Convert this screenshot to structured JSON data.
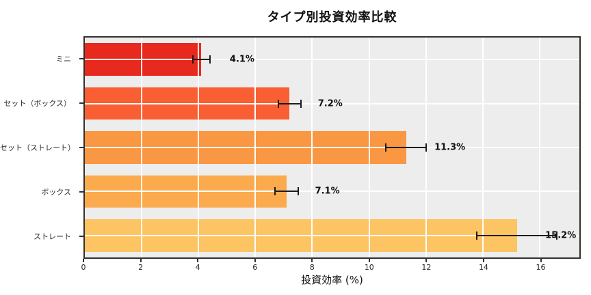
{
  "title": "タイプ別投資効率比較",
  "chart_data": {
    "type": "bar",
    "orientation": "horizontal",
    "title": "タイプ別投資効率比較",
    "xlabel": "投資効率 (%)",
    "categories": [
      "ミニ",
      "セット（ボックス）",
      "セット（ストレート）",
      "ボックス",
      "ストレート"
    ],
    "values": [
      4.1,
      7.2,
      11.3,
      7.1,
      15.2
    ],
    "errors": [
      0.3,
      0.4,
      0.7,
      0.4,
      1.4
    ],
    "value_labels": [
      "4.1%",
      "7.2%",
      "11.3%",
      "7.1%",
      "15.2%"
    ],
    "bar_colors": [
      "#e8291e",
      "#f95f33",
      "#f99742",
      "#fbab4e",
      "#fcc463"
    ],
    "xlim": [
      0,
      17.4
    ],
    "xticks": [
      0,
      2,
      4,
      6,
      8,
      10,
      12,
      14,
      16
    ],
    "grid": true,
    "legend": "none",
    "plot_bg": "#ededed",
    "grid_color": "#ffffff",
    "errorbar_color": "#1c1c1c",
    "label_offset_units": 1.0
  }
}
